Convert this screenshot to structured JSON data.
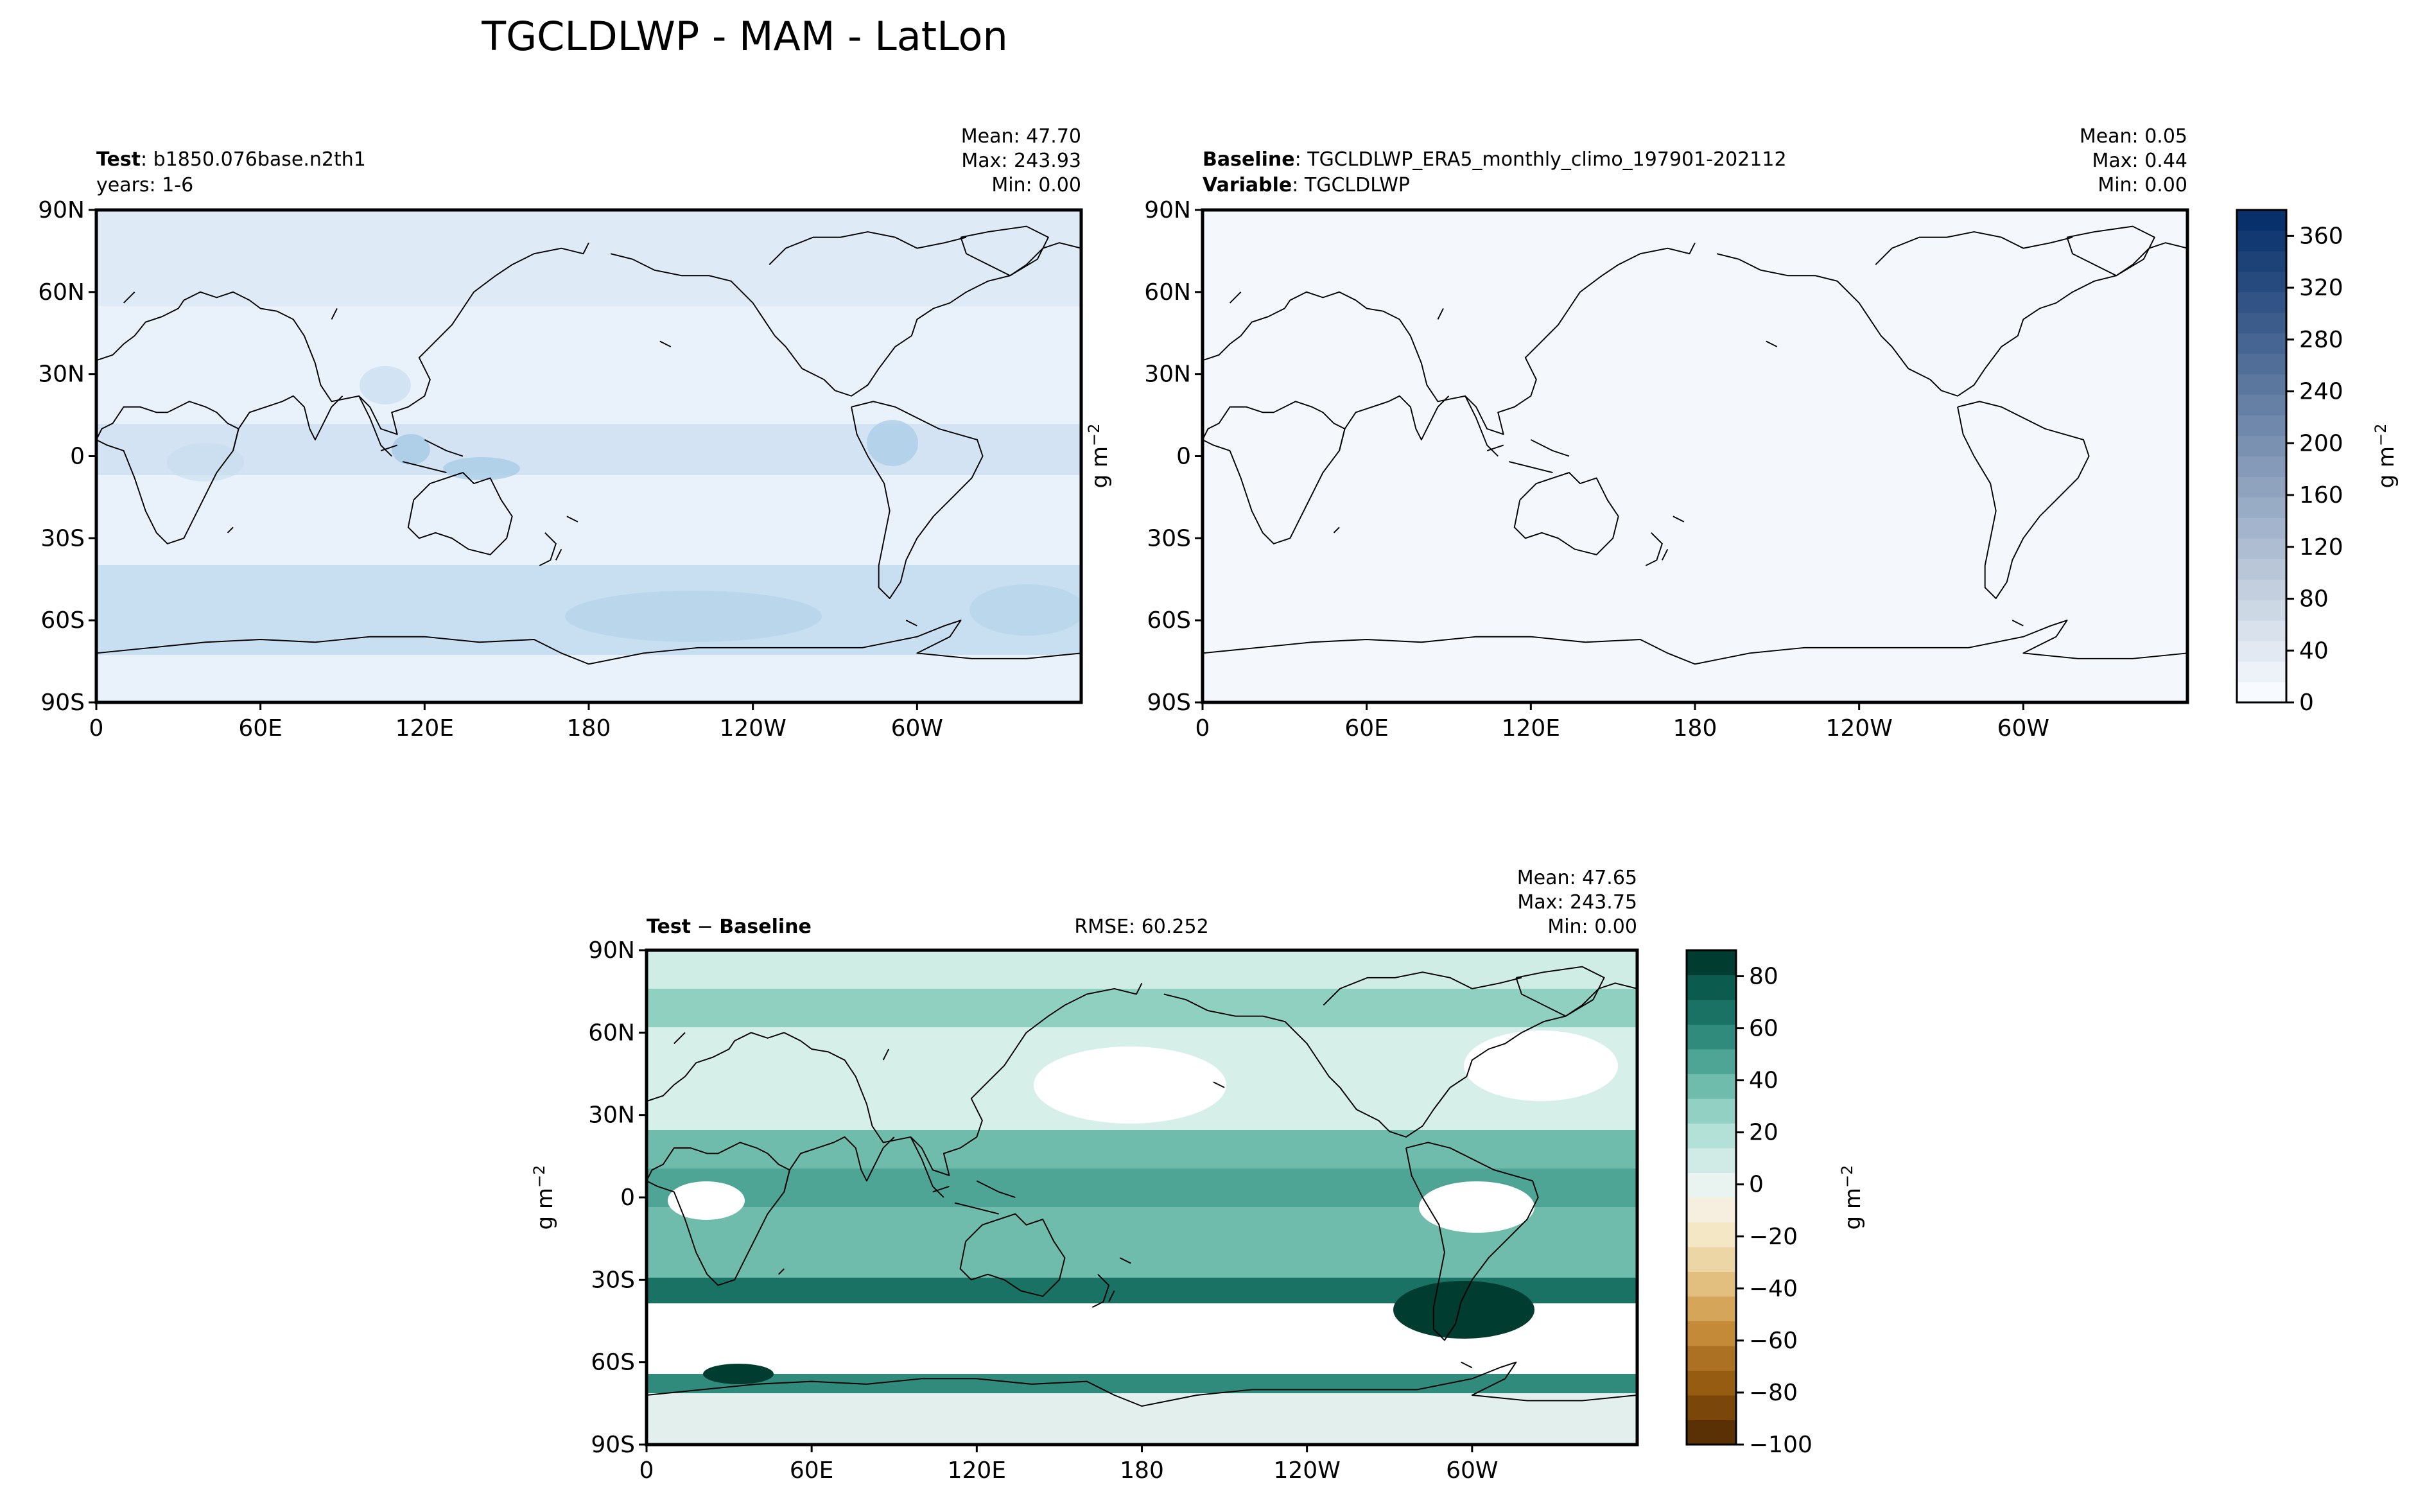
{
  "figure": {
    "title": "TGCLDLWP - MAM - LatLon"
  },
  "units_label": "g m",
  "units_exp": "−2",
  "lat_ticks": [
    "90N",
    "60N",
    "30N",
    "0",
    "30S",
    "60S",
    "90S"
  ],
  "lon_ticks": [
    "0",
    "60E",
    "120E",
    "180",
    "120W",
    "60W"
  ],
  "panels": {
    "test": {
      "label_bold": "Test",
      "label_text": ": b1850.076base.n2th1",
      "line2": "years: 1-6",
      "stats": [
        "Mean: 47.70",
        "Max: 243.93",
        "Min:  0.00"
      ]
    },
    "baseline": {
      "label_bold": "Baseline",
      "label_text": ": TGCLDLWP_ERA5_monthly_climo_197901-202112",
      "line2_bold": "Variable",
      "line2_text": ": TGCLDLWP",
      "stats": [
        "Mean:  0.05",
        "Max:  0.44",
        "Min:  0.00"
      ]
    },
    "diff": {
      "label_test": "Test",
      "label_minus": " − ",
      "label_base": "Baseline",
      "rmse": "RMSE: 60.252",
      "stats": [
        "Mean: 47.65",
        "Max: 243.75",
        "Min:  0.00"
      ]
    }
  },
  "colorbars": {
    "blues": {
      "ticks": [
        "0",
        "40",
        "80",
        "120",
        "160",
        "200",
        "240",
        "280",
        "320",
        "360"
      ],
      "levels": 24,
      "color_low": "#f7fbff",
      "color_high": "#08306b"
    },
    "diff": {
      "ticks": [
        "−100",
        "−80",
        "−60",
        "−40",
        "−20",
        "0",
        "20",
        "40",
        "60",
        "80"
      ],
      "colors": [
        "#5a3005",
        "#7a4609",
        "#955c12",
        "#ad7124",
        "#c58a38",
        "#d5a55a",
        "#e2bf7e",
        "#ecd6a6",
        "#f4e7c6",
        "#f6efe0",
        "#e9f4f1",
        "#d0ebe6",
        "#b3e1d7",
        "#91d0c2",
        "#6fbcad",
        "#4ea595",
        "#308b7c",
        "#197264",
        "#0b5c4f",
        "#003c30"
      ]
    }
  },
  "chart_data": [
    {
      "type": "heatmap",
      "name": "test",
      "title": "Test : b1850.076base.n2th1",
      "xlabel": "",
      "ylabel": "",
      "xlim": [
        0,
        360
      ],
      "ylim": [
        -90,
        90
      ],
      "colorbar_range": [
        0,
        380
      ],
      "stats": {
        "mean": 47.7,
        "max": 243.93,
        "min": 0.0
      },
      "field": [
        {
          "lat": 75,
          "value": 25
        },
        {
          "lat": 55,
          "value": 60
        },
        {
          "lat": 35,
          "value": 25
        },
        {
          "lat": 0,
          "value": 50
        },
        {
          "lat": -20,
          "value": 30
        },
        {
          "lat": -50,
          "value": 90
        },
        {
          "lat": -80,
          "value": 10
        }
      ]
    },
    {
      "type": "heatmap",
      "name": "baseline",
      "title": "Baseline : TGCLDLWP_ERA5_monthly_climo_197901-202112",
      "xlabel": "",
      "ylabel": "g m−2",
      "xlim": [
        0,
        360
      ],
      "ylim": [
        -90,
        90
      ],
      "colorbar_range": [
        0,
        380
      ],
      "stats": {
        "mean": 0.05,
        "max": 0.44,
        "min": 0.0
      }
    },
    {
      "type": "heatmap",
      "name": "difference",
      "title": "Test − Baseline",
      "xlabel": "",
      "ylabel": "g m−2",
      "xlim": [
        0,
        360
      ],
      "ylim": [
        -90,
        90
      ],
      "colorbar_range": [
        -100,
        90
      ],
      "rmse": 60.252,
      "stats": {
        "mean": 47.65,
        "max": 243.75,
        "min": 0.0
      }
    }
  ]
}
